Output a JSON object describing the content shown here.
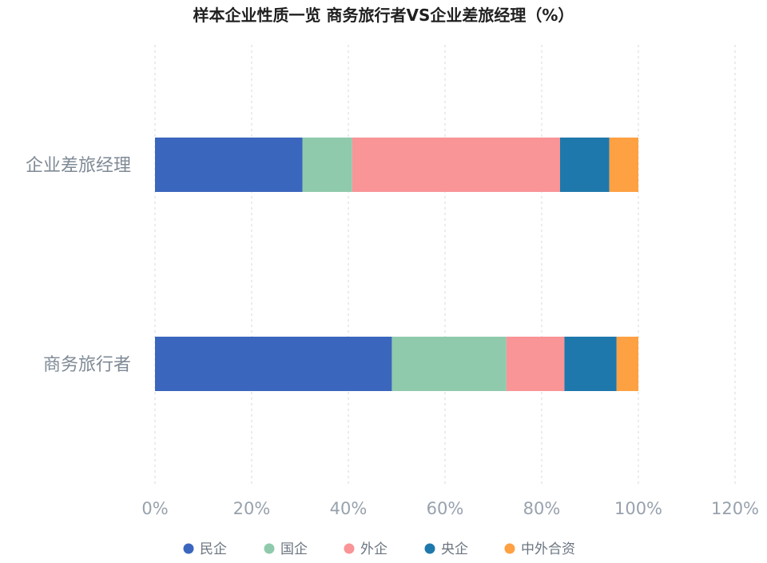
{
  "chart_data": {
    "type": "bar",
    "orientation": "horizontal",
    "stacked": true,
    "title": "样本企业性质一览 商务旅行者VS企业差旅经理（%）",
    "categories": [
      "企业差旅经理",
      "商务旅行者"
    ],
    "xlim": [
      0,
      120
    ],
    "xticks": [
      0,
      20,
      40,
      60,
      80,
      100,
      120
    ],
    "tick_suffix": "%",
    "grid": true,
    "legend_position": "bottom",
    "series": [
      {
        "name": "民企",
        "color": "#3b66bd",
        "values": [
          30.5,
          49.0
        ]
      },
      {
        "name": "国企",
        "color": "#8fcaac",
        "values": [
          10.3,
          23.7
        ]
      },
      {
        "name": "外企",
        "color": "#f99497",
        "values": [
          43.0,
          12.0
        ]
      },
      {
        "name": "央企",
        "color": "#1f78ac",
        "values": [
          10.2,
          10.8
        ]
      },
      {
        "name": "中外合资",
        "color": "#fda143",
        "values": [
          6.0,
          4.5
        ]
      }
    ]
  }
}
